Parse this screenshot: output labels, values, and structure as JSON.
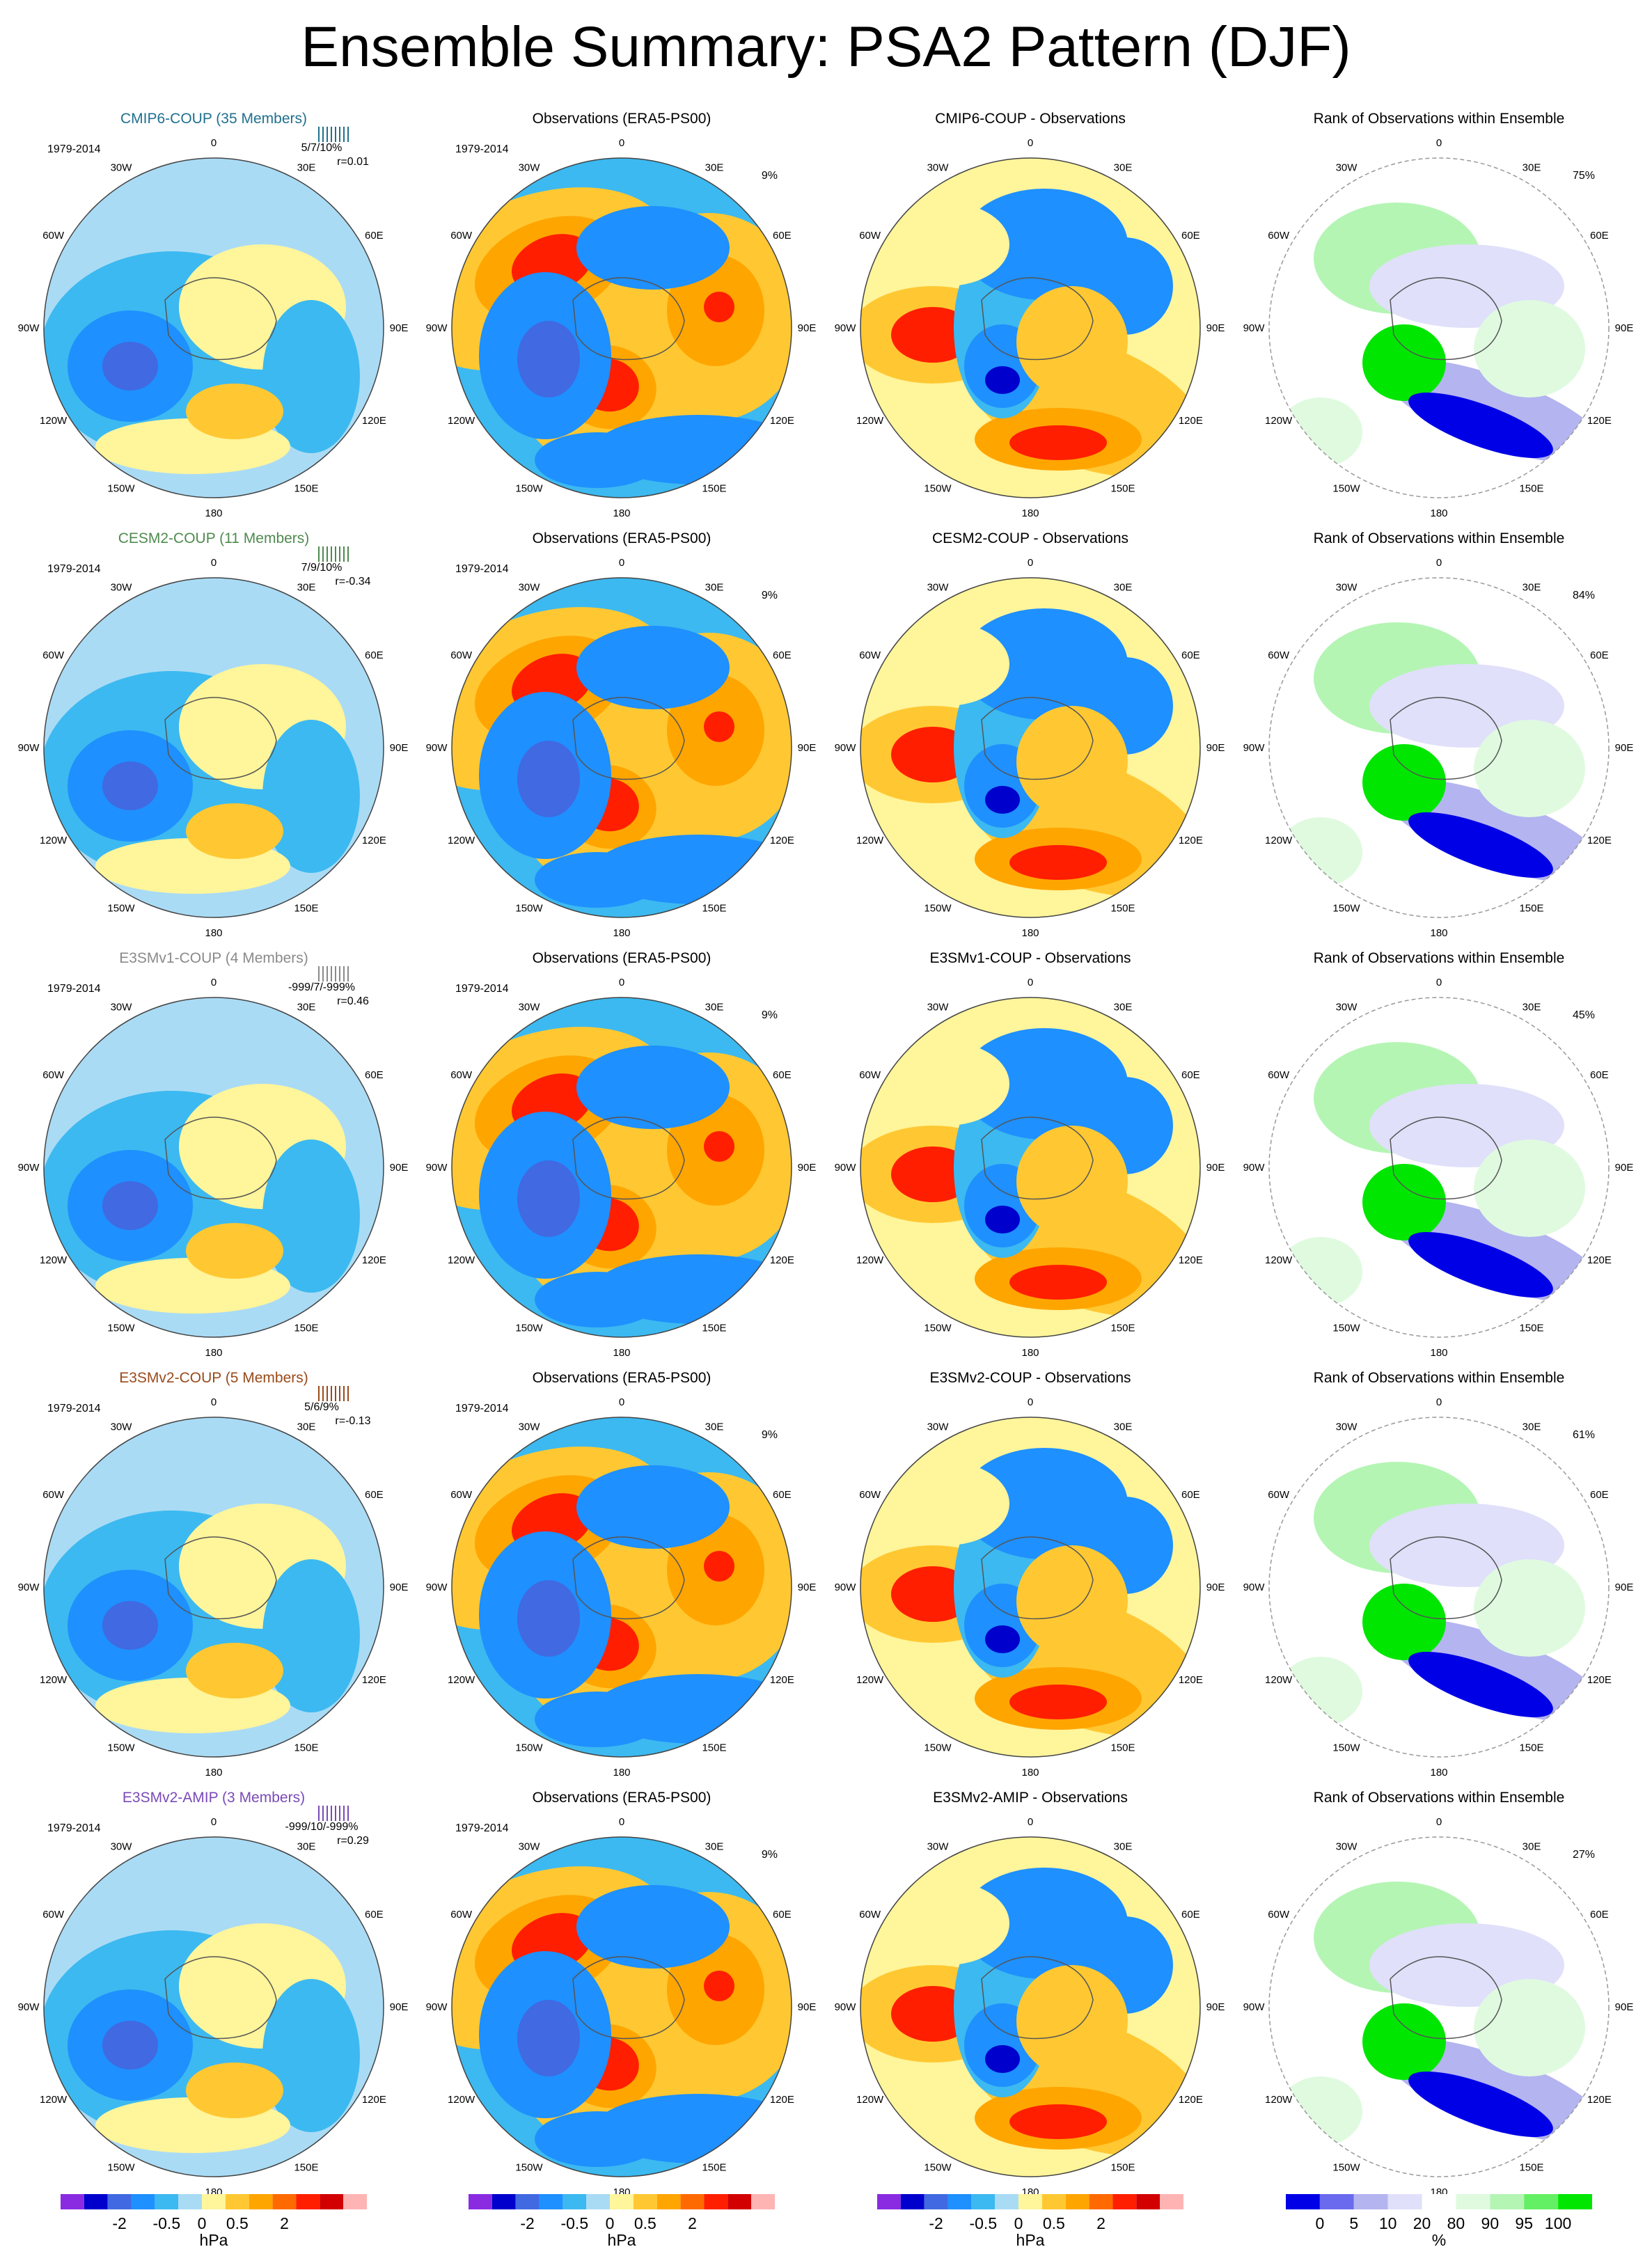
{
  "title": "Ensemble Summary: PSA2 Pattern (DJF)",
  "colors": {
    "pattern_colorbar": [
      "#8a2be2",
      "#0000cd",
      "#4169e1",
      "#1e90ff",
      "#3cb9f0",
      "#aadbf5",
      "#fff59b",
      "#ffc832",
      "#ffa500",
      "#ff6a00",
      "#ff1e00",
      "#d20000",
      "#ffb4b4"
    ],
    "rank_colorbar": [
      "#0000e6",
      "#6a6aee",
      "#b4b4f0",
      "#e0e0fa",
      "#ffffff",
      "#e0fae0",
      "#b4f5b4",
      "#64f064",
      "#00e600"
    ],
    "model_title_colors": {
      "CMIP6-COUP": "#20708e",
      "CESM2-COUP": "#4e8a4e",
      "E3SMv1-COUP": "#8a8a8a",
      "E3SMv2-COUP": "#9a4a1a",
      "E3SMv2-AMIP": "#7a4ab8"
    }
  },
  "longitude_labels": [
    "0",
    "30E",
    "60E",
    "90E",
    "120E",
    "150E",
    "180",
    "150W",
    "120W",
    "90W",
    "60W",
    "30W"
  ],
  "chart_data": [
    {
      "type": "heatmap",
      "row": 1,
      "panel": "ensemble-mean",
      "title": "CMIP6-COUP (35 Members)",
      "period": "1979-2014",
      "stats": "5/7/10%",
      "corr": "r=0.01"
    },
    {
      "type": "heatmap",
      "row": 1,
      "panel": "observations",
      "title": "Observations (ERA5-PS00)",
      "period": "1979-2014",
      "percent": "9%"
    },
    {
      "type": "heatmap",
      "row": 1,
      "panel": "difference",
      "title": "CMIP6-COUP - Observations"
    },
    {
      "type": "heatmap",
      "row": 1,
      "panel": "rank",
      "title": "Rank of Observations within Ensemble",
      "percent": "75%"
    },
    {
      "type": "heatmap",
      "row": 2,
      "panel": "ensemble-mean",
      "title": "CESM2-COUP (11 Members)",
      "period": "1979-2014",
      "stats": "7/9/10%",
      "corr": "r=-0.34"
    },
    {
      "type": "heatmap",
      "row": 2,
      "panel": "observations",
      "title": "Observations (ERA5-PS00)",
      "period": "1979-2014",
      "percent": "9%"
    },
    {
      "type": "heatmap",
      "row": 2,
      "panel": "difference",
      "title": "CESM2-COUP - Observations"
    },
    {
      "type": "heatmap",
      "row": 2,
      "panel": "rank",
      "title": "Rank of Observations within Ensemble",
      "percent": "84%"
    },
    {
      "type": "heatmap",
      "row": 3,
      "panel": "ensemble-mean",
      "title": "E3SMv1-COUP (4 Members)",
      "period": "1979-2014",
      "stats": "-999/7/-999%",
      "corr": "r=0.46"
    },
    {
      "type": "heatmap",
      "row": 3,
      "panel": "observations",
      "title": "Observations (ERA5-PS00)",
      "period": "1979-2014",
      "percent": "9%"
    },
    {
      "type": "heatmap",
      "row": 3,
      "panel": "difference",
      "title": "E3SMv1-COUP - Observations"
    },
    {
      "type": "heatmap",
      "row": 3,
      "panel": "rank",
      "title": "Rank of Observations within Ensemble",
      "percent": "45%"
    },
    {
      "type": "heatmap",
      "row": 4,
      "panel": "ensemble-mean",
      "title": "E3SMv2-COUP (5 Members)",
      "period": "1979-2014",
      "stats": "5/6/9%",
      "corr": "r=-0.13"
    },
    {
      "type": "heatmap",
      "row": 4,
      "panel": "observations",
      "title": "Observations (ERA5-PS00)",
      "period": "1979-2014",
      "percent": "9%"
    },
    {
      "type": "heatmap",
      "row": 4,
      "panel": "difference",
      "title": "E3SMv2-COUP - Observations"
    },
    {
      "type": "heatmap",
      "row": 4,
      "panel": "rank",
      "title": "Rank of Observations within Ensemble",
      "percent": "61%"
    },
    {
      "type": "heatmap",
      "row": 5,
      "panel": "ensemble-mean",
      "title": "E3SMv2-AMIP (3 Members)",
      "period": "1979-2014",
      "stats": "-999/10/-999%",
      "corr": "r=0.29"
    },
    {
      "type": "heatmap",
      "row": 5,
      "panel": "observations",
      "title": "Observations (ERA5-PS00)",
      "period": "1979-2014",
      "percent": "9%"
    },
    {
      "type": "heatmap",
      "row": 5,
      "panel": "difference",
      "title": "E3SMv2-AMIP - Observations"
    },
    {
      "type": "heatmap",
      "row": 5,
      "panel": "rank",
      "title": "Rank of Observations within Ensemble",
      "percent": "27%"
    }
  ],
  "colorbars": {
    "pattern": {
      "tick_labels": [
        "-2",
        "-0.5",
        "0",
        "0.5",
        "2"
      ],
      "unit": "hPa"
    },
    "rank": {
      "tick_labels": [
        "0",
        "5",
        "10",
        "20",
        "80",
        "90",
        "95",
        "100"
      ],
      "unit": "%"
    }
  }
}
